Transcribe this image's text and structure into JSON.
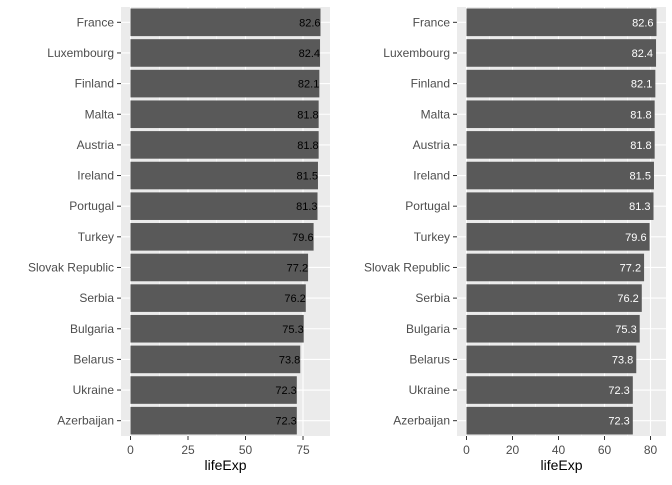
{
  "chart_data": [
    {
      "type": "bar",
      "orientation": "horizontal",
      "categories": [
        "France",
        "Luxembourg",
        "Finland",
        "Malta",
        "Austria",
        "Ireland",
        "Portugal",
        "Turkey",
        "Slovak Republic",
        "Serbia",
        "Bulgaria",
        "Belarus",
        "Ukraine",
        "Azerbaijan"
      ],
      "values": [
        82.6,
        82.4,
        82.1,
        81.8,
        81.8,
        81.5,
        81.3,
        79.6,
        77.2,
        76.2,
        75.3,
        73.8,
        72.3,
        72.3
      ],
      "labels": [
        "82.6",
        "82.4",
        "82.1",
        "81.8",
        "81.8",
        "81.5",
        "81.3",
        "79.6",
        "77.2",
        "76.2",
        "75.3",
        "73.8",
        "72.3",
        "72.3"
      ],
      "xlabel": "lifeExp",
      "xlim": [
        -4.13,
        86.73
      ],
      "xticks": [
        0,
        25,
        50,
        75
      ],
      "label_position": "outside-end",
      "label_color": "#000000",
      "bar_color": "#595959",
      "panel_bg": "#ebebeb",
      "grid": true
    },
    {
      "type": "bar",
      "orientation": "horizontal",
      "categories": [
        "France",
        "Luxembourg",
        "Finland",
        "Malta",
        "Austria",
        "Ireland",
        "Portugal",
        "Turkey",
        "Slovak Republic",
        "Serbia",
        "Bulgaria",
        "Belarus",
        "Ukraine",
        "Azerbaijan"
      ],
      "values": [
        82.6,
        82.4,
        82.1,
        81.8,
        81.8,
        81.5,
        81.3,
        79.6,
        77.2,
        76.2,
        75.3,
        73.8,
        72.3,
        72.3
      ],
      "labels": [
        "82.6",
        "82.4",
        "82.1",
        "81.8",
        "81.8",
        "81.5",
        "81.3",
        "79.6",
        "77.2",
        "76.2",
        "75.3",
        "73.8",
        "72.3",
        "72.3"
      ],
      "xlabel": "lifeExp",
      "xlim": [
        -4.13,
        86.73
      ],
      "xticks": [
        0,
        20,
        40,
        60,
        80
      ],
      "label_position": "inside-end",
      "label_color": "#ffffff",
      "bar_color": "#595959",
      "panel_bg": "#ebebeb",
      "grid": true
    }
  ]
}
